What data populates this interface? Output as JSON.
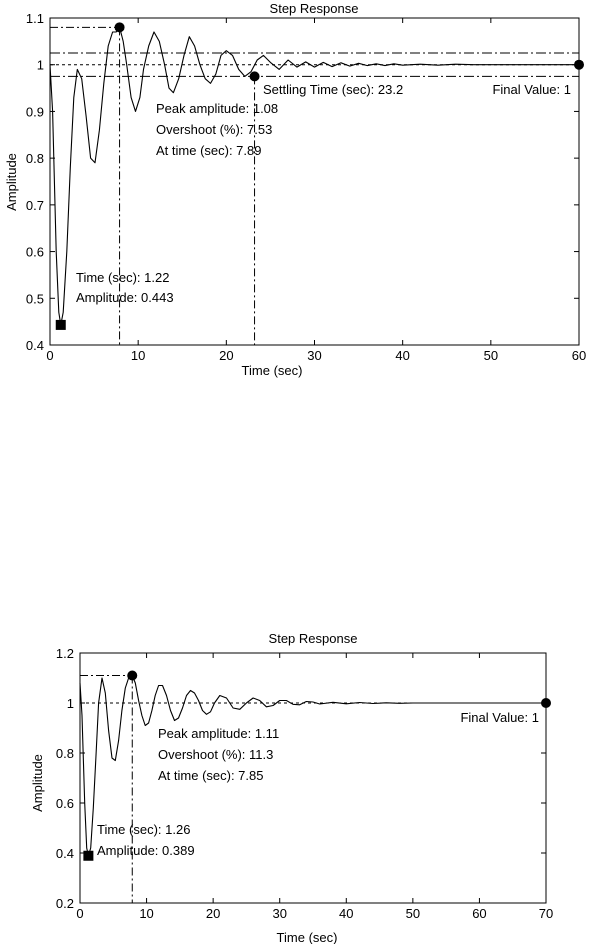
{
  "chart_data": [
    {
      "type": "line",
      "title": "Step Response",
      "xlabel": "Time (sec)",
      "ylabel": "Amplitude",
      "xlim": [
        0,
        60
      ],
      "ylim": [
        0.4,
        1.1
      ],
      "xticks": [
        0,
        10,
        20,
        30,
        40,
        50,
        60
      ],
      "xtick_labels": [
        "0",
        "10",
        "20",
        "30",
        "40",
        "50",
        "60"
      ],
      "yticks": [
        0.4,
        0.5,
        0.6,
        0.7,
        0.8,
        0.9,
        1.0,
        1.1
      ],
      "ytick_labels": [
        "0.4",
        "0.5",
        "0.6",
        "0.7",
        "0.8",
        "0.9",
        "1",
        "1.1"
      ],
      "grid": false,
      "series": [
        {
          "x": [
            0,
            0.3,
            0.7,
            1.0,
            1.22,
            1.5,
            1.9,
            2.3,
            2.7,
            3.1,
            3.6,
            4.1,
            4.6,
            5.1,
            5.6,
            6.1,
            6.6,
            7.1,
            7.5,
            7.89,
            8.3,
            8.7,
            9.2,
            9.7,
            10.2,
            10.6,
            11.2,
            11.8,
            12.4,
            13.0,
            13.5,
            14.0,
            14.6,
            15.2,
            15.8,
            16.4,
            17.0,
            17.6,
            18.2,
            18.8,
            19.4,
            20.0,
            20.7,
            21.4,
            22.1,
            22.8,
            23.5,
            24.2,
            25.0,
            26.0,
            27.0,
            28.0,
            29.0,
            30.0,
            31.0,
            32.0,
            33.0,
            34.0,
            35.0,
            36.0,
            37.0,
            38.0,
            39.0,
            40.0,
            42.0,
            44.0,
            46.0,
            48.0,
            50.0,
            52.0,
            54.0,
            56.0,
            58.0,
            60.0
          ],
          "y": [
            1.0,
            0.9,
            0.6,
            0.47,
            0.443,
            0.47,
            0.6,
            0.78,
            0.93,
            0.99,
            0.97,
            0.89,
            0.8,
            0.79,
            0.86,
            0.96,
            1.04,
            1.07,
            1.07,
            1.08,
            1.05,
            1.0,
            0.93,
            0.9,
            0.93,
            0.99,
            1.04,
            1.07,
            1.05,
            1.0,
            0.95,
            0.94,
            0.97,
            1.02,
            1.06,
            1.04,
            1.0,
            0.97,
            0.96,
            0.98,
            1.02,
            1.03,
            1.02,
            0.99,
            0.975,
            0.985,
            1.01,
            1.02,
            1.005,
            0.99,
            1.01,
            0.995,
            1.006,
            0.995,
            1.005,
            0.996,
            1.004,
            0.997,
            1.003,
            0.998,
            1.002,
            0.998,
            1.002,
            0.999,
            1.001,
            0.999,
            1.001,
            1.0,
            1.0,
            1.0,
            1.0,
            1.0,
            1.0,
            1.0
          ]
        }
      ],
      "reference_lines": [
        1.0,
        1.025,
        0.975,
        1.08
      ],
      "settling_band": [
        0.975,
        1.025
      ],
      "markers": [
        {
          "shape": "square",
          "x": 1.22,
          "y": 0.443
        },
        {
          "shape": "circle",
          "x": 7.89,
          "y": 1.08
        },
        {
          "shape": "circle",
          "x": 23.2,
          "y": 0.975
        },
        {
          "shape": "circle",
          "x": 60,
          "y": 1.0
        }
      ],
      "vertical_guides": [
        7.89,
        23.2
      ],
      "annotations": {
        "peak": [
          "Peak amplitude: 1.08",
          "Overshoot (%): 7.53",
          "At time (sec): 7.89"
        ],
        "settling": "Settling Time (sec): 23.2",
        "final": "Final Value: 1",
        "min": [
          "Time (sec): 1.22",
          "Amplitude: 0.443"
        ]
      }
    },
    {
      "type": "line",
      "title": "Step Response",
      "xlabel": "Time (sec)",
      "ylabel": "Amplitude",
      "xlim": [
        0,
        70
      ],
      "ylim": [
        0.2,
        1.2
      ],
      "xticks": [
        0,
        10,
        20,
        30,
        40,
        50,
        60,
        70
      ],
      "xtick_labels": [
        "0",
        "10",
        "20",
        "30",
        "40",
        "50",
        "60",
        "70"
      ],
      "yticks": [
        0.2,
        0.4,
        0.6,
        0.8,
        1.0,
        1.2
      ],
      "ytick_labels": [
        "0.2",
        "0.4",
        "0.6",
        "0.8",
        "1",
        "1.2"
      ],
      "grid": false,
      "series": [
        {
          "x": [
            0,
            0.3,
            0.7,
            1.0,
            1.26,
            1.6,
            2.0,
            2.4,
            2.8,
            3.3,
            3.8,
            4.3,
            4.8,
            5.3,
            5.8,
            6.3,
            6.8,
            7.3,
            7.85,
            8.3,
            8.8,
            9.3,
            9.8,
            10.3,
            10.8,
            11.3,
            11.8,
            12.4,
            13.0,
            13.6,
            14.2,
            14.8,
            15.4,
            16.0,
            16.6,
            17.2,
            17.8,
            18.4,
            19.0,
            19.6,
            20.2,
            21.0,
            22.0,
            23.0,
            24.0,
            25.0,
            26.0,
            27.0,
            28.0,
            29.0,
            30.0,
            31.0,
            32.0,
            33.0,
            34.0,
            35.0,
            36.0,
            38.0,
            40.0,
            42.0,
            44.0,
            46.0,
            48.0,
            50.0,
            55.0,
            60.0,
            65.0,
            70.0
          ],
          "y": [
            1.08,
            0.95,
            0.6,
            0.42,
            0.389,
            0.42,
            0.58,
            0.79,
            1.0,
            1.1,
            1.04,
            0.89,
            0.78,
            0.77,
            0.85,
            0.97,
            1.06,
            1.1,
            1.11,
            1.08,
            1.01,
            0.95,
            0.91,
            0.92,
            0.97,
            1.03,
            1.07,
            1.07,
            1.03,
            0.97,
            0.93,
            0.94,
            0.98,
            1.03,
            1.05,
            1.04,
            1.01,
            0.97,
            0.955,
            0.965,
            1.0,
            1.03,
            1.02,
            0.98,
            0.975,
            1.0,
            1.02,
            1.01,
            0.985,
            0.99,
            1.01,
            1.01,
            0.995,
            0.993,
            1.006,
            1.004,
            0.996,
            1.003,
            0.997,
            1.002,
            0.998,
            1.001,
            0.999,
            1.0,
            1.0,
            1.0,
            1.0,
            1.0
          ]
        }
      ],
      "reference_lines": [
        1.0,
        1.11
      ],
      "markers": [
        {
          "shape": "square",
          "x": 1.26,
          "y": 0.389
        },
        {
          "shape": "circle",
          "x": 7.85,
          "y": 1.11
        },
        {
          "shape": "circle",
          "x": 70,
          "y": 1.0
        }
      ],
      "vertical_guides": [
        7.85
      ],
      "annotations": {
        "peak": [
          "Peak amplitude: 1.11",
          "Overshoot (%): 11.3",
          "At time (sec): 7.85"
        ],
        "final": "Final Value: 1",
        "min": [
          "Time (sec): 1.26",
          "Amplitude: 0.389"
        ]
      }
    }
  ]
}
